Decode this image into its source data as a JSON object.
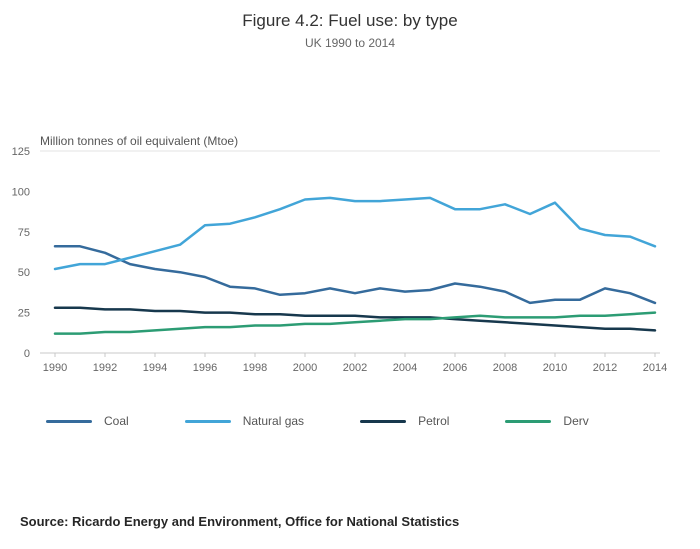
{
  "title": "Figure 4.2: Fuel use: by type",
  "subtitle": "UK 1990 to 2014",
  "chart_data": {
    "type": "line",
    "title": "Figure 4.2: Fuel use: by type",
    "subtitle": "UK 1990 to 2014",
    "ylabel": "Million tonnes of oil equivalent (Mtoe)",
    "xlabel": "",
    "ylim": [
      0,
      125
    ],
    "yticks": [
      0,
      25,
      50,
      75,
      100,
      125
    ],
    "xticks": [
      1990,
      1992,
      1994,
      1996,
      1998,
      2000,
      2002,
      2004,
      2006,
      2008,
      2010,
      2012,
      2014
    ],
    "grid": "top-gridline-and-baseline-only",
    "legend_position": "bottom",
    "x": [
      1990,
      1991,
      1992,
      1993,
      1994,
      1995,
      1996,
      1997,
      1998,
      1999,
      2000,
      2001,
      2002,
      2003,
      2004,
      2005,
      2006,
      2007,
      2008,
      2009,
      2010,
      2011,
      2012,
      2013,
      2014
    ],
    "series": [
      {
        "name": "Coal",
        "color": "#356b9c",
        "values": [
          66,
          66,
          62,
          55,
          52,
          50,
          47,
          41,
          40,
          36,
          37,
          40,
          37,
          40,
          38,
          39,
          43,
          41,
          38,
          31,
          33,
          33,
          40,
          37,
          31
        ]
      },
      {
        "name": "Natural gas",
        "color": "#42a5d8",
        "values": [
          52,
          55,
          55,
          59,
          63,
          67,
          79,
          80,
          84,
          89,
          95,
          96,
          94,
          94,
          95,
          96,
          89,
          89,
          92,
          86,
          93,
          77,
          73,
          72,
          66
        ]
      },
      {
        "name": "Petrol",
        "color": "#17384d",
        "values": [
          28,
          28,
          27,
          27,
          26,
          26,
          25,
          25,
          24,
          24,
          23,
          23,
          23,
          22,
          22,
          22,
          21,
          20,
          19,
          18,
          17,
          16,
          15,
          15,
          14
        ]
      },
      {
        "name": "Derv",
        "color": "#2c9c74",
        "values": [
          12,
          12,
          13,
          13,
          14,
          15,
          16,
          16,
          17,
          17,
          18,
          18,
          19,
          20,
          21,
          21,
          22,
          23,
          22,
          22,
          22,
          23,
          23,
          24,
          25
        ]
      }
    ],
    "colors": {
      "axis_line": "#c9c9c9",
      "top_gridline": "#e3e3e3",
      "tick_label": "#666666"
    }
  },
  "source": {
    "text": "Source: Ricardo Energy and Environment, Office for National Statistics"
  }
}
